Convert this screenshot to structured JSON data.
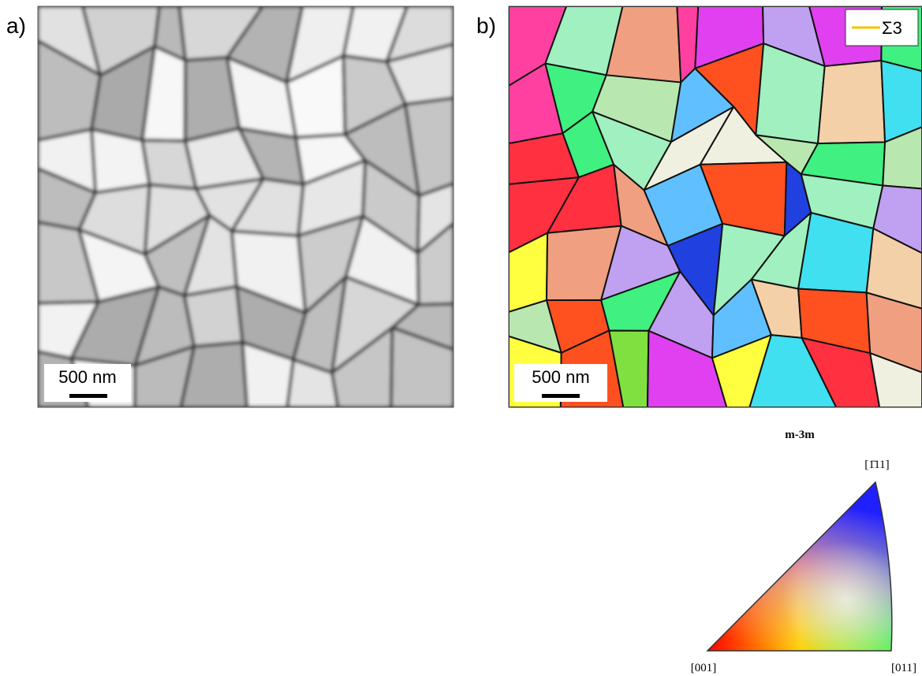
{
  "panels": [
    {
      "label": "a)",
      "scale_bar": "500 nm"
    },
    {
      "label": "b)",
      "scale_bar": "500 nm",
      "legend": "Σ3"
    }
  ],
  "ipf": {
    "title": "m-3m",
    "top": "[1̄11]",
    "left": "[001]",
    "right": "[011]"
  }
}
